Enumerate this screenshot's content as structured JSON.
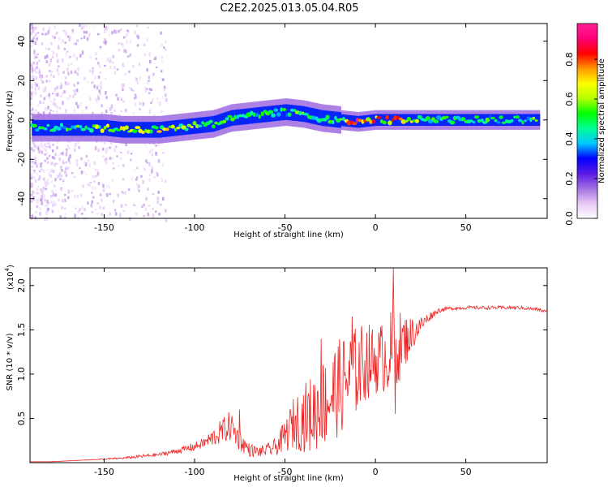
{
  "figure": {
    "title": "C2E2.2025.013.05.04.R05"
  },
  "chart_data": [
    {
      "type": "heatmap",
      "xlabel": "Height of straight line (km)",
      "ylabel": "Frequency (Hz)",
      "xlim": [
        -191,
        95
      ],
      "ylim": [
        -50,
        49
      ],
      "xticks": [
        -150,
        -100,
        -50,
        0,
        50
      ],
      "yticks": [
        -40,
        -20,
        0,
        20,
        40
      ],
      "colorbar": {
        "label": "Normalized spectral amplitude",
        "range": [
          0,
          0.98
        ],
        "ticks": [
          0.0,
          0.2,
          0.4,
          0.6,
          0.8
        ],
        "colormap": [
          "#ffffff",
          "#e6c8f5",
          "#a070e0",
          "#5a18e6",
          "#0000ff",
          "#00c8ff",
          "#00ff96",
          "#00ff00",
          "#b4ff00",
          "#ffff00",
          "#ff9600",
          "#ff0000",
          "#ff0078",
          "#ff1e96"
        ]
      },
      "ridge": [
        {
          "x": -190,
          "f": -4,
          "a": 0.55
        },
        {
          "x": -180,
          "f": -4,
          "a": 0.6
        },
        {
          "x": -170,
          "f": -4,
          "a": 0.55
        },
        {
          "x": -160,
          "f": -4,
          "a": 0.6
        },
        {
          "x": -150,
          "f": -4,
          "a": 0.7
        },
        {
          "x": -140,
          "f": -5,
          "a": 0.75
        },
        {
          "x": -130,
          "f": -5,
          "a": 0.7
        },
        {
          "x": -120,
          "f": -5,
          "a": 0.75
        },
        {
          "x": -110,
          "f": -4,
          "a": 0.7
        },
        {
          "x": -100,
          "f": -3,
          "a": 0.65
        },
        {
          "x": -90,
          "f": -2,
          "a": 0.6
        },
        {
          "x": -80,
          "f": 1,
          "a": 0.6
        },
        {
          "x": -70,
          "f": 2,
          "a": 0.55
        },
        {
          "x": -60,
          "f": 3,
          "a": 0.6
        },
        {
          "x": -50,
          "f": 4,
          "a": 0.55
        },
        {
          "x": -40,
          "f": 3,
          "a": 0.65
        },
        {
          "x": -30,
          "f": 1,
          "a": 0.55
        },
        {
          "x": -20,
          "f": 0,
          "a": 0.6
        },
        {
          "x": -10,
          "f": -1,
          "a": 0.95
        },
        {
          "x": 0,
          "f": 0,
          "a": 0.9
        },
        {
          "x": 10,
          "f": 0,
          "a": 0.85
        },
        {
          "x": 30,
          "f": 0,
          "a": 0.6
        },
        {
          "x": 50,
          "f": 0,
          "a": 0.55
        },
        {
          "x": 70,
          "f": 0,
          "a": 0.55
        },
        {
          "x": 90,
          "f": 0,
          "a": 0.6
        }
      ]
    },
    {
      "type": "line",
      "xlabel": "Height of straight line (km)",
      "ylabel": "SNR (10 * v/v)",
      "scale_note_base": "(x10",
      "scale_note_exp": "4",
      "scale_note_close": ")",
      "xlim": [
        -191,
        95
      ],
      "ylim": [
        0,
        2.2
      ],
      "xticks": [
        -150,
        -100,
        -50,
        0,
        50
      ],
      "yticks": [
        0.5,
        1.0,
        1.5,
        2.0
      ],
      "series": [
        {
          "color": "#ee2222",
          "x": [
            -191,
            -180,
            -170,
            -160,
            -150,
            -140,
            -130,
            -120,
            -110,
            -100,
            -95,
            -90,
            -85,
            -80,
            -75,
            -70,
            -65,
            -60,
            -55,
            -50,
            -45,
            -40,
            -35,
            -30,
            -25,
            -20,
            -15,
            -10,
            -5,
            0,
            5,
            10,
            15,
            20,
            25,
            30,
            35,
            40,
            50,
            60,
            70,
            80,
            90,
            95
          ],
          "y": [
            0.01,
            0.01,
            0.02,
            0.03,
            0.04,
            0.05,
            0.07,
            0.09,
            0.13,
            0.18,
            0.22,
            0.28,
            0.35,
            0.42,
            0.25,
            0.15,
            0.12,
            0.14,
            0.18,
            0.3,
            0.45,
            0.5,
            0.55,
            0.65,
            0.75,
            0.85,
            0.95,
            1.05,
            1.15,
            1.15,
            1.2,
            1.25,
            1.35,
            1.45,
            1.55,
            1.65,
            1.72,
            1.74,
            1.75,
            1.75,
            1.75,
            1.75,
            1.73,
            1.7
          ],
          "noise": [
            0,
            0,
            0,
            0,
            0.01,
            0.01,
            0.02,
            0.02,
            0.03,
            0.05,
            0.06,
            0.1,
            0.14,
            0.18,
            0.12,
            0.08,
            0.06,
            0.07,
            0.1,
            0.18,
            0.3,
            0.38,
            0.45,
            0.5,
            0.55,
            0.55,
            0.55,
            0.5,
            0.45,
            0.38,
            0.42,
            0.5,
            0.35,
            0.2,
            0.1,
            0.05,
            0.03,
            0.02,
            0.02,
            0.02,
            0.02,
            0.02,
            0.02,
            0.02
          ],
          "spikes": [
            {
              "x": 10,
              "y": 2.2
            },
            {
              "x": 11,
              "y": 0.55
            },
            {
              "x": -75,
              "y": 0.6
            },
            {
              "x": -13,
              "y": 1.65
            },
            {
              "x": -30,
              "y": 1.4
            }
          ]
        }
      ]
    }
  ]
}
